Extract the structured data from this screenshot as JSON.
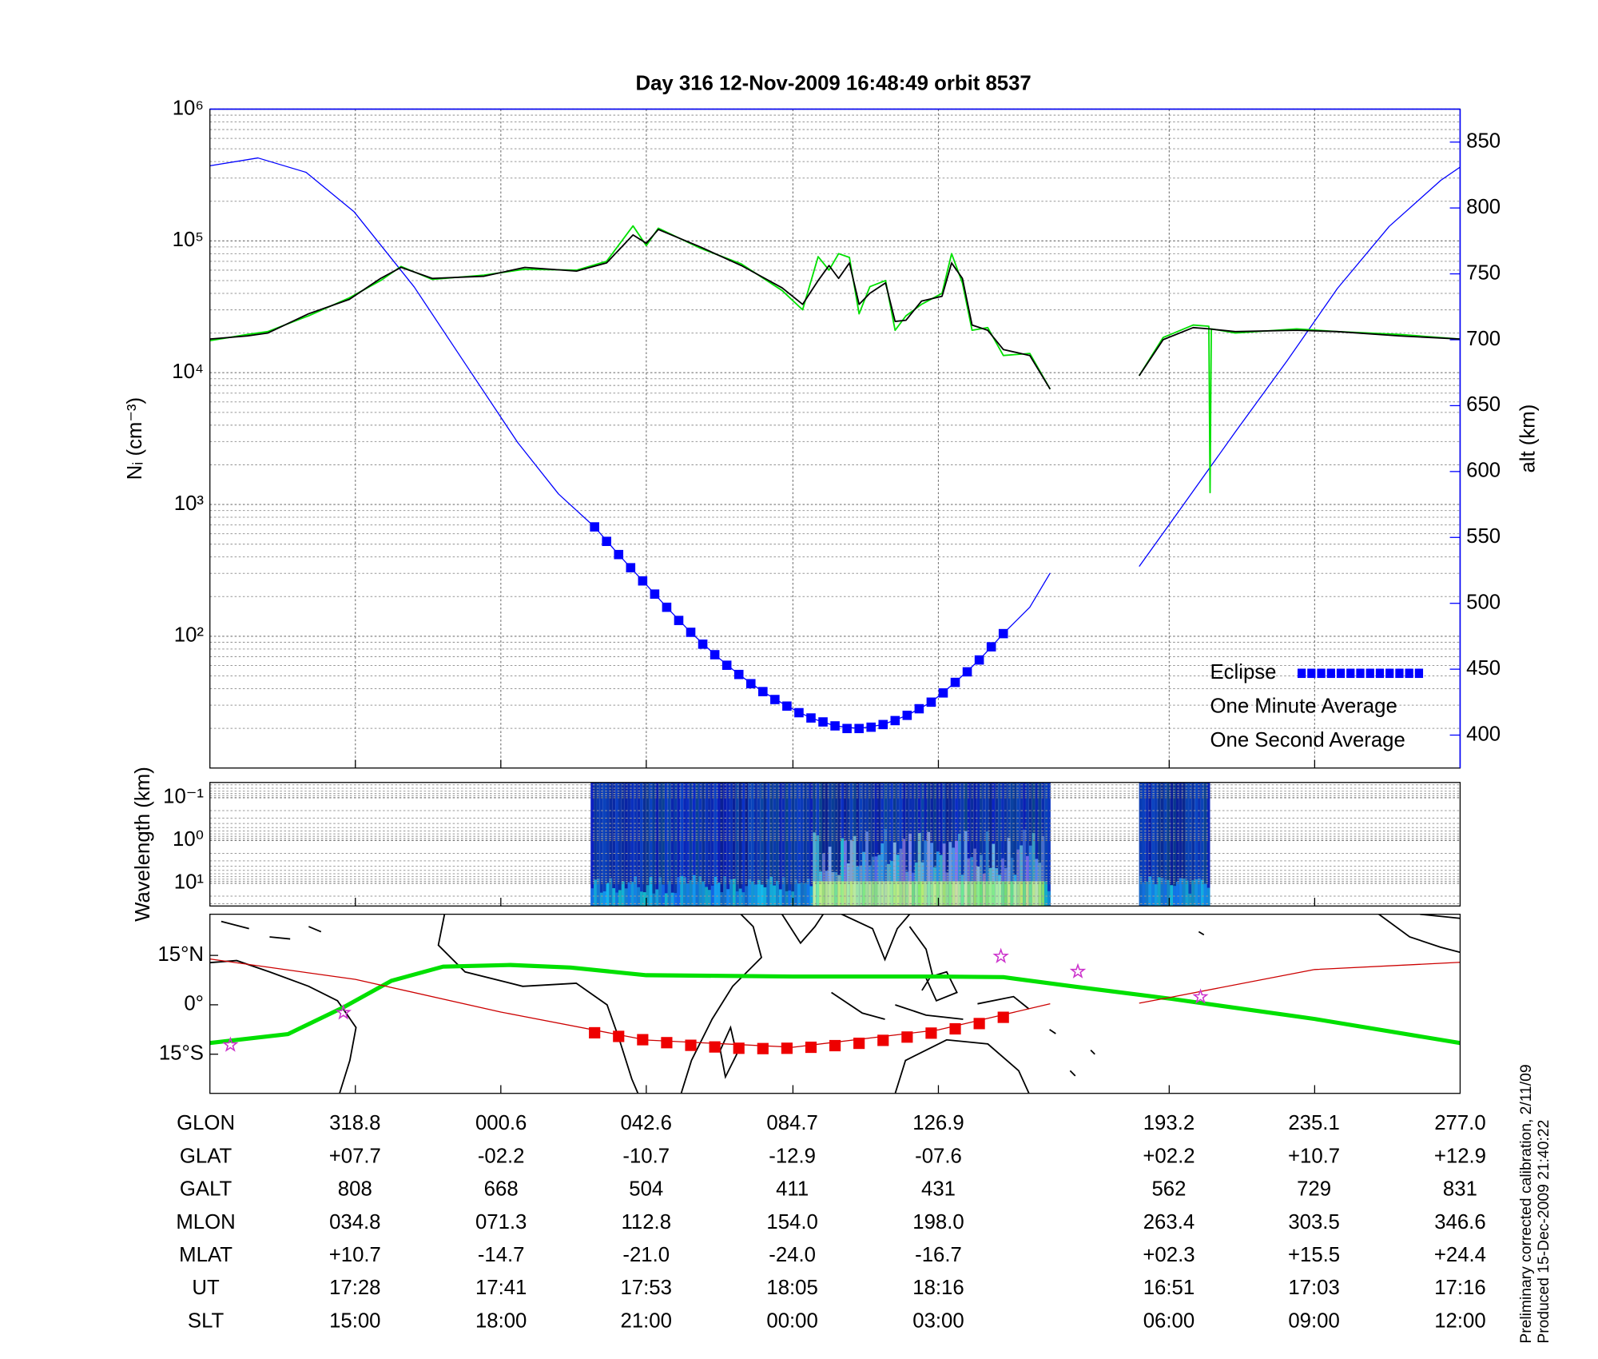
{
  "chart_data": [
    {
      "type": "line",
      "title": "Day 316  12-Nov-2009 16:48:49   orbit 8537",
      "ylabel": "Nᵢ (cm⁻³)",
      "y2label": "alt (km)",
      "log_y": true,
      "grid": true,
      "legend": "lower right",
      "xlim": [
        0,
        104
      ],
      "xticks": [
        12.1,
        24.2,
        36.3,
        48.5,
        60.6,
        79.8,
        91.9
      ],
      "ylim": [
        10,
        1000000
      ],
      "yticks": [
        {
          "value": 100,
          "label": "10²"
        },
        {
          "value": 1000,
          "label": "10³"
        },
        {
          "value": 10000,
          "label": "10⁴"
        },
        {
          "value": 100000,
          "label": "10⁵"
        },
        {
          "value": 1000000,
          "label": "10⁶"
        }
      ],
      "y2lim": [
        375,
        875
      ],
      "y2ticks": [
        400,
        450,
        500,
        550,
        600,
        650,
        700,
        750,
        800,
        850
      ],
      "y2color": "#0000ff",
      "series": [
        {
          "name": "Eclipse",
          "color": "#0000ff",
          "marker": "square",
          "axis": "y2",
          "x": [
            32,
            33,
            34,
            35,
            36,
            37,
            38,
            39,
            40,
            41,
            42,
            43,
            44,
            45,
            46,
            47,
            48,
            49,
            50,
            51,
            52,
            53,
            54,
            55,
            56,
            57,
            58,
            59,
            60,
            61,
            62,
            63,
            64,
            65,
            66
          ],
          "values": [
            558,
            547,
            537,
            527,
            517,
            507,
            497,
            487,
            478,
            469,
            461,
            453,
            446,
            439,
            433,
            427,
            422,
            417,
            413,
            410,
            407,
            405,
            405,
            406,
            408,
            411,
            415,
            420,
            425,
            432,
            440,
            448,
            457,
            467,
            477
          ]
        },
        {
          "name": "One Minute Average",
          "color": "#000000",
          "x": [
            0,
            3.1,
            4.8,
            8.2,
            11.6,
            14.2,
            15.9,
            18.5,
            22.8,
            26.2,
            30.5,
            33.0,
            35.2,
            36.3,
            37.3,
            40.8,
            44.2,
            47.6,
            49.3,
            50.6,
            51.5,
            52.3,
            53.2,
            54.0,
            54.9,
            56.2,
            57.0,
            57.9,
            59.2,
            60.9,
            61.7,
            62.6,
            63.4,
            64.7,
            66.0,
            68.2,
            69.9,
            73.0,
            77.3,
            79.3,
            81.8,
            83.1,
            83.2,
            83.3,
            85.3,
            90.4,
            93.8,
            99.0,
            104.0
          ],
          "values": [
            18000,
            19000,
            20000,
            28000,
            36000,
            52000,
            63000,
            52000,
            54000,
            63000,
            59000,
            68000,
            111000,
            96000,
            122000,
            90000,
            65000,
            44000,
            33000,
            50000,
            65000,
            52000,
            68000,
            33000,
            40000,
            48000,
            24500,
            25000,
            35000,
            38000,
            68000,
            52000,
            23000,
            21000,
            15000,
            13500,
            7500,
            null,
            9500,
            17800,
            22000,
            21500,
            21500,
            21400,
            20500,
            21000,
            20500,
            19000,
            18000
          ]
        },
        {
          "name": "One Second Average",
          "color": "#00e000",
          "x": [
            0,
            3.1,
            4.8,
            8.2,
            11.6,
            14.2,
            15.9,
            18.5,
            22.8,
            26.2,
            30.5,
            33.0,
            35.2,
            36.3,
            37.3,
            40.8,
            44.2,
            47.6,
            49.3,
            50.6,
            51.5,
            52.3,
            53.2,
            54.0,
            54.9,
            56.2,
            57.0,
            57.9,
            59.2,
            60.9,
            61.7,
            62.6,
            63.4,
            64.7,
            66.0,
            68.2,
            69.9,
            73.0,
            77.3,
            79.3,
            81.8,
            83.1,
            83.2,
            83.3,
            85.3,
            90.4,
            93.8,
            99.0,
            104.0
          ],
          "values": [
            17500,
            19500,
            20500,
            27000,
            37000,
            50000,
            64000,
            51000,
            55000,
            61000,
            60000,
            70000,
            130000,
            92000,
            125000,
            88000,
            67000,
            42000,
            30000,
            76000,
            60000,
            80000,
            75000,
            28000,
            45000,
            50000,
            21000,
            27000,
            33000,
            40000,
            80000,
            48000,
            21000,
            22000,
            13500,
            14000,
            7500,
            null,
            9500,
            18500,
            23000,
            22500,
            1230,
            21500,
            20000,
            21500,
            20500,
            19500,
            18000
          ]
        },
        {
          "color": "#0000ff",
          "axis": "y2",
          "x": [
            0,
            4,
            8,
            12,
            17,
            21.3,
            25.6,
            29,
            32,
            34,
            36,
            38,
            40,
            42,
            44,
            46,
            48,
            50,
            52,
            54,
            56,
            58,
            60,
            62,
            64,
            66,
            68.2,
            69.9,
            73,
            77.3,
            81,
            85.3,
            89.6,
            93.8,
            98.1,
            102.4,
            104
          ],
          "values": [
            832,
            838,
            827,
            797,
            740,
            681,
            622,
            583,
            558,
            537,
            517,
            497,
            478,
            461,
            446,
            433,
            422,
            413,
            407,
            405,
            408,
            415,
            425,
            440,
            457,
            477,
            497,
            523,
            null,
            528,
            575,
            630,
            684,
            739,
            786,
            821,
            831
          ]
        }
      ]
    },
    {
      "type": "spectrogram",
      "ylabel": "Wavelength (km)",
      "log_y": true,
      "grid": true,
      "xlim": [
        0,
        104
      ],
      "xticks": [
        12.1,
        24.2,
        36.3,
        48.5,
        60.6,
        79.8,
        91.9
      ],
      "ylim": [
        34,
        0.044
      ],
      "yticks": [
        {
          "value": 0.1,
          "label": "10⁻¹"
        },
        {
          "value": 1,
          "label": "10⁰"
        },
        {
          "value": 10,
          "label": "10¹"
        }
      ]
    },
    {
      "type": "map",
      "xlim": [
        0,
        104
      ],
      "xticks": [
        12.1,
        24.2,
        36.3,
        48.5,
        60.6,
        79.8,
        91.9
      ],
      "ylim": [
        -26.9,
        27.5
      ],
      "yticks": [
        {
          "value": 15,
          "label": "15°N"
        },
        {
          "value": 0,
          "label": "0°"
        },
        {
          "value": -15,
          "label": "15°S"
        }
      ],
      "series": [
        {
          "color": "#00e000",
          "width": 4,
          "x": [
            0,
            6.5,
            11.2,
            15.1,
            19.4,
            25,
            30,
            36.3,
            48.5,
            60.6,
            66,
            72,
            80,
            91.9,
            104
          ],
          "values": [
            -11.6,
            -8.9,
            -0.6,
            7.3,
            11.6,
            12.1,
            11.3,
            9.0,
            8.6,
            8.6,
            8.4,
            5.5,
            1.8,
            -4.3,
            -11.6
          ]
        },
        {
          "color": "#cc0000",
          "width": 1,
          "x": [
            0,
            12.1,
            24.2,
            36.3,
            48.5,
            60.6,
            69.9,
            73,
            77.3,
            79.8,
            91.9,
            104
          ],
          "values": [
            13.9,
            7.7,
            -2.2,
            -10.7,
            -12.9,
            -7.6,
            0.3,
            null,
            0.5,
            2.2,
            10.7,
            12.9
          ]
        },
        {
          "color": "#ee0000",
          "marker": "square",
          "x": [
            32,
            34,
            36,
            38,
            40,
            42,
            44,
            46,
            48,
            50,
            52,
            54,
            56,
            58,
            60,
            62,
            64,
            66
          ],
          "values": [
            -8.5,
            -9.6,
            -10.6,
            -11.5,
            -12.3,
            -12.8,
            -13.2,
            -13.3,
            -13.2,
            -12.9,
            -12.4,
            -11.7,
            -10.8,
            -9.8,
            -8.6,
            -7.3,
            -5.7,
            -3.8
          ]
        },
        {
          "color": "#cc33cc",
          "marker": "star",
          "x": [
            1.7,
            11.1,
            65.8,
            72.2,
            82.4
          ],
          "values": [
            -12.2,
            -2.4,
            14.7,
            10.1,
            2.4
          ]
        }
      ]
    }
  ],
  "table": {
    "rows": [
      {
        "label": "GLON",
        "cells": [
          "318.8",
          "000.6",
          "042.6",
          "084.7",
          "126.9",
          "193.2",
          "235.1",
          "277.0"
        ]
      },
      {
        "label": "GLAT",
        "cells": [
          "+07.7",
          "-02.2",
          "-10.7",
          "-12.9",
          "-07.6",
          "+02.2",
          "+10.7",
          "+12.9"
        ]
      },
      {
        "label": "GALT",
        "cells": [
          "808",
          "668",
          "504",
          "411",
          "431",
          "562",
          "729",
          "831"
        ]
      },
      {
        "label": "MLON",
        "cells": [
          "034.8",
          "071.3",
          "112.8",
          "154.0",
          "198.0",
          "263.4",
          "303.5",
          "346.6"
        ]
      },
      {
        "label": "MLAT",
        "cells": [
          "+10.7",
          "-14.7",
          "-21.0",
          "-24.0",
          "-16.7",
          "+02.3",
          "+15.5",
          "+24.4"
        ]
      },
      {
        "label": "UT",
        "cells": [
          "17:28",
          "17:41",
          "17:53",
          "18:05",
          "18:16",
          "16:51",
          "17:03",
          "17:16"
        ]
      },
      {
        "label": "SLT",
        "cells": [
          "15:00",
          "18:00",
          "21:00",
          "00:00",
          "03:00",
          "06:00",
          "09:00",
          "12:00"
        ]
      }
    ]
  },
  "footer": [
    "Preliminary corrected calibration, 2/11/09",
    "Produced 15-Dec-2009 21:40:22"
  ]
}
